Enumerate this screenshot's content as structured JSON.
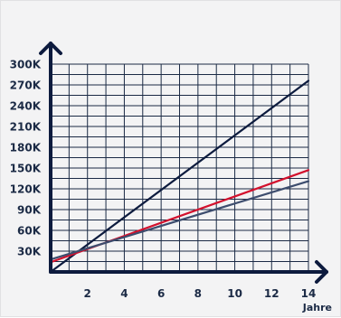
{
  "chart_data": {
    "type": "line",
    "title": "",
    "xlabel": "Jahre",
    "ylabel": "",
    "xlim": [
      0,
      14
    ],
    "ylim": [
      0,
      300000
    ],
    "x_ticks": [
      2,
      4,
      6,
      8,
      10,
      12,
      14
    ],
    "x_tick_labels": [
      "2",
      "4",
      "6",
      "8",
      "10",
      "12",
      "14"
    ],
    "y_ticks": [
      30000,
      60000,
      90000,
      120000,
      150000,
      180000,
      210000,
      240000,
      270000,
      300000
    ],
    "y_tick_labels": [
      "30K",
      "60K",
      "90K",
      "120K",
      "150K",
      "180K",
      "210K",
      "240K",
      "270K",
      "300K"
    ],
    "grid": true,
    "series": [
      {
        "x": [
          0,
          14
        ],
        "values": [
          0,
          276000
        ],
        "color": "#0d1b3e"
      },
      {
        "x": [
          0,
          14
        ],
        "values": [
          14000,
          147000
        ],
        "color": "#d3112d"
      },
      {
        "x": [
          0,
          14
        ],
        "values": [
          18000,
          131000
        ],
        "color": "#3d4d6e"
      }
    ]
  }
}
